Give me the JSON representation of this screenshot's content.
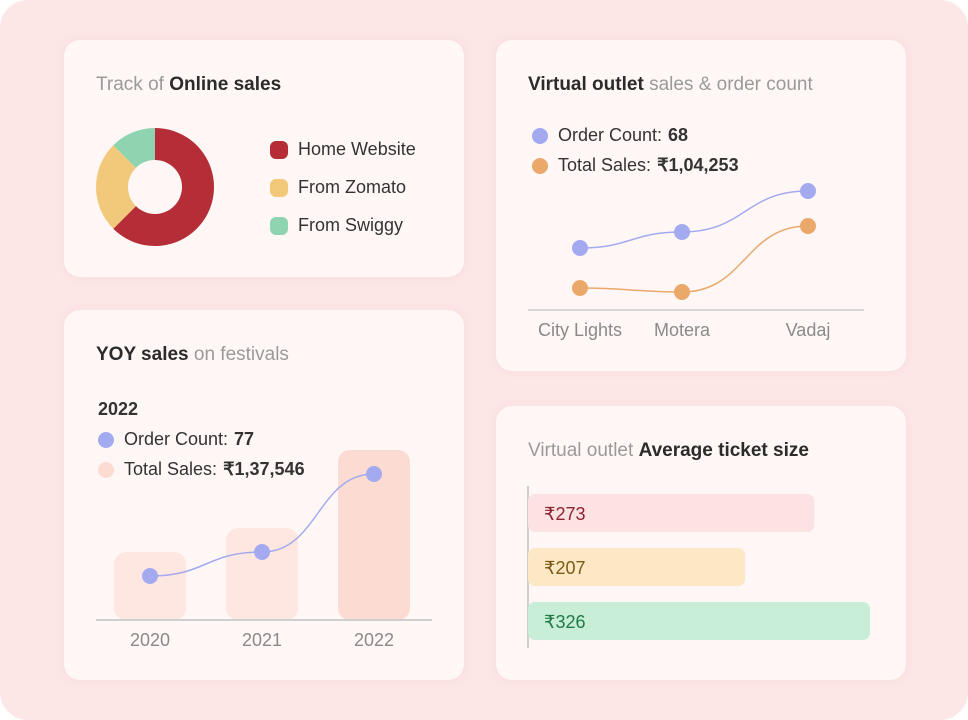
{
  "colors": {
    "background": "#fde6e6",
    "card": "#fff7f6",
    "order_count": "#a3aaf0",
    "total_sales": "#eaa86a",
    "yoy_bar": "#fcdcd2"
  },
  "online_sales": {
    "title_light": "Track of",
    "title_bold": "Online sales",
    "chart_data": {
      "type": "pie",
      "donut": true,
      "categories": [
        "Home Website",
        "From Zomato",
        "From Swiggy"
      ],
      "values": [
        62.5,
        25,
        12.5
      ],
      "colors": [
        "#b52d36",
        "#f2c87a",
        "#8fd4b0"
      ]
    }
  },
  "virtual_outlet": {
    "title_bold": "Virtual outlet",
    "title_light": "sales & order count",
    "legend": [
      {
        "label": "Order Count:",
        "value": "68",
        "color": "#a3aaf0"
      },
      {
        "label": "Total Sales:",
        "value": "₹1,04,253",
        "color": "#eaa86a"
      }
    ],
    "chart_data": {
      "type": "line",
      "categories": [
        "City Lights",
        "Motera",
        "Vadaj"
      ],
      "ylim": [
        0,
        130
      ],
      "series": [
        {
          "name": "Order Count",
          "values": [
            62,
            78,
            119
          ],
          "color": "#a3aaf0"
        },
        {
          "name": "Total Sales",
          "values": [
            22,
            18,
            84
          ],
          "color": "#eaa86a"
        }
      ],
      "grid": false
    }
  },
  "yoy": {
    "title_bold": "YOY sales",
    "title_light": "on festivals",
    "year": "2022",
    "legend": [
      {
        "label": "Order Count:",
        "value": "77",
        "color": "#a3aaf0"
      },
      {
        "label": "Total Sales:",
        "value": "₹1,37,546",
        "color": "#fcdcd2"
      }
    ],
    "chart_data": {
      "type": "bar",
      "categories": [
        "2020",
        "2021",
        "2022"
      ],
      "ylim": [
        0,
        180
      ],
      "series": [
        {
          "name": "Total Sales",
          "type": "bar",
          "values": [
            68,
            92,
            170
          ]
        },
        {
          "name": "Order Count",
          "type": "line",
          "values": [
            44,
            68,
            146
          ]
        }
      ],
      "grid": false
    }
  },
  "ticket": {
    "title_light": "Virtual outlet",
    "title_bold": "Average ticket size",
    "chart_data": {
      "type": "bar",
      "orientation": "horizontal",
      "values": [
        273,
        207,
        326
      ],
      "labels": [
        "₹273",
        "₹207",
        "₹326"
      ],
      "colors": [
        "#fde2e4",
        "#fde8c6",
        "#c9eed8"
      ],
      "text_colors": [
        "#8c2430",
        "#7a5a14",
        "#1f7a45"
      ]
    }
  }
}
